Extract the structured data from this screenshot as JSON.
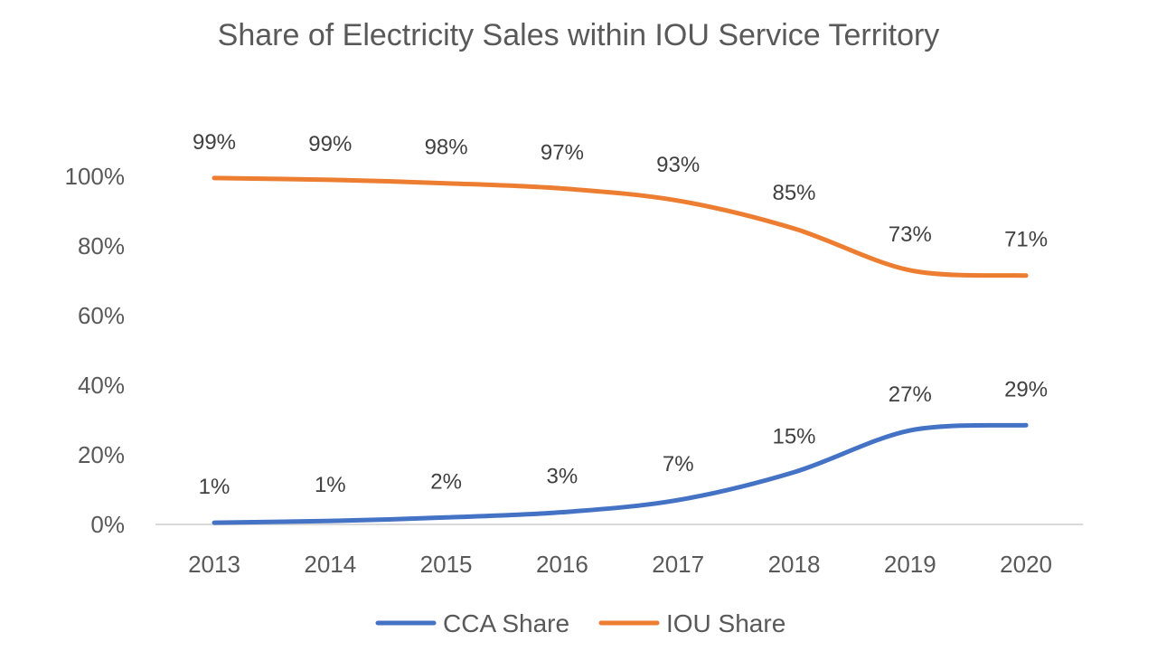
{
  "chart_data": {
    "type": "line",
    "title": "Share of Electricity Sales within IOU Service Territory",
    "xlabel": "",
    "ylabel": "",
    "categories": [
      "2013",
      "2014",
      "2015",
      "2016",
      "2017",
      "2018",
      "2019",
      "2020"
    ],
    "y_ticks": [
      "0%",
      "20%",
      "40%",
      "60%",
      "80%",
      "100%"
    ],
    "ylim": [
      0,
      100
    ],
    "grid": false,
    "legend_position": "bottom",
    "series": [
      {
        "name": "CCA Share",
        "color": "#4472C4",
        "values": [
          0.5,
          1,
          2,
          3.5,
          7,
          15,
          27,
          28.5
        ],
        "labels": [
          "1%",
          "1%",
          "2%",
          "3%",
          "7%",
          "15%",
          "27%",
          "29%"
        ]
      },
      {
        "name": "IOU Share",
        "color": "#ED7D31",
        "values": [
          99.5,
          99,
          98,
          96.5,
          93,
          85,
          73,
          71.5
        ],
        "labels": [
          "99%",
          "99%",
          "98%",
          "97%",
          "93%",
          "85%",
          "73%",
          "71%"
        ]
      }
    ]
  }
}
